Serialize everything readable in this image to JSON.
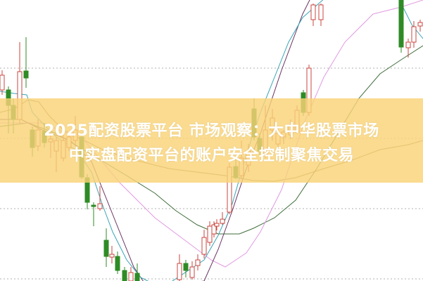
{
  "headline": {
    "line1": "2025配资股票平台 市场观察：大中华股票市场",
    "line2": "中实盘配资平台的账户安全控制聚焦交易"
  },
  "colors": {
    "banner": "#f9d378",
    "up_candle": "#c9453f",
    "down_candle": "#2e8b25",
    "ma_cyan": "#3aa5b5",
    "ma_purple": "#6a3360",
    "ma_pink": "#e09ae0",
    "ma_olive": "#8c7a4a",
    "ma_green": "#3f6e3a",
    "grid": "#b0b0b0"
  }
}
